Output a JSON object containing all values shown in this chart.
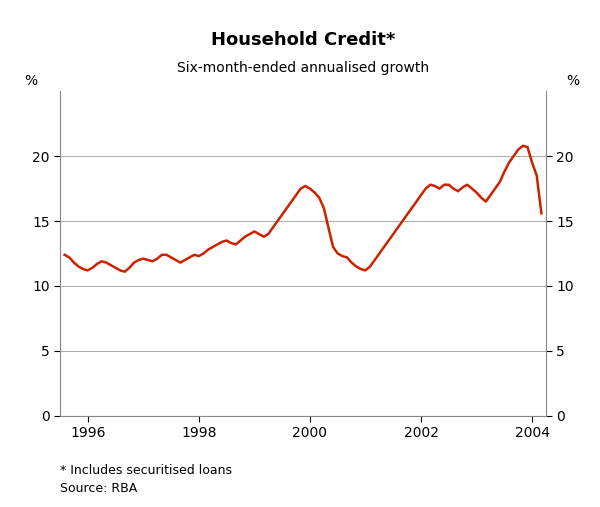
{
  "title": "Household Credit*",
  "subtitle": "Six-month-ended annualised growth",
  "footnote1": "* Includes securitised loans",
  "footnote2": "Source: RBA",
  "line_color": "#cc2200",
  "line_width": 1.8,
  "ylim": [
    0,
    25
  ],
  "yticks": [
    0,
    5,
    10,
    15,
    20
  ],
  "xlim_start": 1995.5,
  "xlim_end": 2004.25,
  "xticks": [
    1996,
    1998,
    2000,
    2002,
    2004
  ],
  "background_color": "#ffffff",
  "grid_color": "#aaaaaa",
  "data": {
    "dates": [
      1995.583,
      1995.667,
      1995.75,
      1995.833,
      1995.917,
      1996.0,
      1996.083,
      1996.167,
      1996.25,
      1996.333,
      1996.417,
      1996.5,
      1996.583,
      1996.667,
      1996.75,
      1996.833,
      1996.917,
      1997.0,
      1997.083,
      1997.167,
      1997.25,
      1997.333,
      1997.417,
      1997.5,
      1997.583,
      1997.667,
      1997.75,
      1997.833,
      1997.917,
      1998.0,
      1998.083,
      1998.167,
      1998.25,
      1998.333,
      1998.417,
      1998.5,
      1998.583,
      1998.667,
      1998.75,
      1998.833,
      1998.917,
      1999.0,
      1999.083,
      1999.167,
      1999.25,
      1999.333,
      1999.417,
      1999.5,
      1999.583,
      1999.667,
      1999.75,
      1999.833,
      1999.917,
      2000.0,
      2000.083,
      2000.167,
      2000.25,
      2000.333,
      2000.417,
      2000.5,
      2000.583,
      2000.667,
      2000.75,
      2000.833,
      2000.917,
      2001.0,
      2001.083,
      2001.167,
      2001.25,
      2001.333,
      2001.417,
      2001.5,
      2001.583,
      2001.667,
      2001.75,
      2001.833,
      2001.917,
      2002.0,
      2002.083,
      2002.167,
      2002.25,
      2002.333,
      2002.417,
      2002.5,
      2002.583,
      2002.667,
      2002.75,
      2002.833,
      2002.917,
      2003.0,
      2003.083,
      2003.167,
      2003.25,
      2003.333,
      2003.417,
      2003.5,
      2003.583,
      2003.667,
      2003.75,
      2003.833,
      2003.917,
      2004.0,
      2004.083,
      2004.167
    ],
    "values": [
      12.4,
      12.2,
      11.8,
      11.5,
      11.3,
      11.2,
      11.4,
      11.7,
      11.9,
      11.8,
      11.6,
      11.4,
      11.2,
      11.1,
      11.4,
      11.8,
      12.0,
      12.1,
      12.0,
      11.9,
      12.1,
      12.4,
      12.4,
      12.2,
      12.0,
      11.8,
      12.0,
      12.2,
      12.4,
      12.3,
      12.5,
      12.8,
      13.0,
      13.2,
      13.4,
      13.5,
      13.3,
      13.2,
      13.5,
      13.8,
      14.0,
      14.2,
      14.0,
      13.8,
      14.0,
      14.5,
      15.0,
      15.5,
      16.0,
      16.5,
      17.0,
      17.5,
      17.7,
      17.5,
      17.2,
      16.8,
      16.0,
      14.5,
      13.0,
      12.5,
      12.3,
      12.2,
      11.8,
      11.5,
      11.3,
      11.2,
      11.5,
      12.0,
      12.5,
      13.0,
      13.5,
      14.0,
      14.5,
      15.0,
      15.5,
      16.0,
      16.5,
      17.0,
      17.5,
      17.8,
      17.7,
      17.5,
      17.8,
      17.8,
      17.5,
      17.3,
      17.6,
      17.8,
      17.5,
      17.2,
      16.8,
      16.5,
      17.0,
      17.5,
      18.0,
      18.8,
      19.5,
      20.0,
      20.5,
      20.8,
      20.7,
      19.5,
      18.5,
      15.6
    ]
  }
}
